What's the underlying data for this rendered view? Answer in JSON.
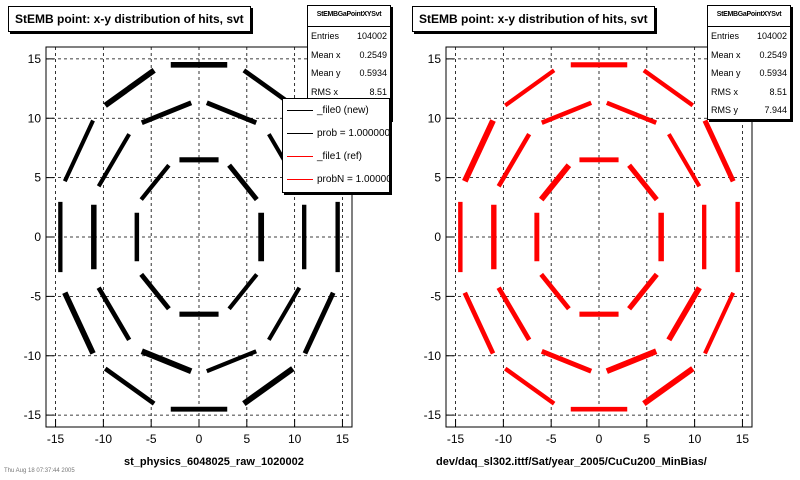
{
  "panels": [
    {
      "title": "StEMB point: x-y distribution of hits, svt",
      "stats": {
        "name": "StEMBGaPointXYSvt",
        "rows": [
          {
            "label": "Entries",
            "value": "104002"
          },
          {
            "label": "Mean x",
            "value": "0.2549"
          },
          {
            "label": "Mean y",
            "value": "0.5934"
          },
          {
            "label": "RMS x",
            "value": "8.51"
          }
        ]
      },
      "legend": [
        {
          "label": "_file0 (new)",
          "color": "#000000"
        },
        {
          "label": "prob = 1.000000",
          "color": "#000000"
        },
        {
          "label": "_file1 (ref)",
          "color": "#ff0000"
        },
        {
          "label": "probN = 1.000000",
          "color": "#ff0000"
        }
      ],
      "file_label": "st_physics_6048025_raw_1020002",
      "marker_color": "#000000"
    },
    {
      "title": "StEMB point: x-y distribution of hits, svt",
      "stats": {
        "name": "StEMBGaPointXYSvt",
        "rows": [
          {
            "label": "Entries",
            "value": "104002"
          },
          {
            "label": "Mean x",
            "value": "0.2549"
          },
          {
            "label": "Mean y",
            "value": "0.5934"
          },
          {
            "label": "RMS x",
            "value": "8.51"
          },
          {
            "label": "RMS y",
            "value": "7.944"
          }
        ]
      },
      "file_label": "dev/daq_sl302.ittf/Sat/year_2005/CuCu200_MinBias/",
      "marker_color": "#ff0000"
    }
  ],
  "footer_timestamp": "Thu Aug 18 07:37:44 2005",
  "chart_data": [
    {
      "type": "scatter",
      "title": "StEMB point: x-y distribution of hits, svt",
      "xlim": [
        -16,
        16
      ],
      "ylim": [
        -16,
        16
      ],
      "xticks": [
        -15,
        -10,
        -5,
        0,
        5,
        10,
        15
      ],
      "yticks": [
        -15,
        -10,
        -5,
        0,
        5,
        10,
        15
      ],
      "grid": true,
      "series": [
        {
          "name": "_file0 (new)",
          "color": "#000000",
          "layers": [
            {
              "shape": "octagon",
              "sides": 8,
              "apothem": 6.5,
              "rotation_deg": 0
            },
            {
              "shape": "octagon",
              "sides": 10,
              "apothem": 11.0,
              "rotation_deg": 0
            },
            {
              "shape": "octagon",
              "sides": 12,
              "apothem": 14.5,
              "rotation_deg": 0
            }
          ]
        }
      ]
    },
    {
      "type": "scatter",
      "title": "StEMB point: x-y distribution of hits, svt",
      "xlim": [
        -16,
        16
      ],
      "ylim": [
        -16,
        16
      ],
      "xticks": [
        -15,
        -10,
        -5,
        0,
        5,
        10,
        15
      ],
      "yticks": [
        -15,
        -10,
        -5,
        0,
        5,
        10,
        15
      ],
      "grid": true,
      "series": [
        {
          "name": "_file1 (ref)",
          "color": "#ff0000",
          "layers": [
            {
              "shape": "octagon",
              "sides": 8,
              "apothem": 6.5,
              "rotation_deg": 0
            },
            {
              "shape": "octagon",
              "sides": 10,
              "apothem": 11.0,
              "rotation_deg": 0
            },
            {
              "shape": "octagon",
              "sides": 12,
              "apothem": 14.5,
              "rotation_deg": 0
            }
          ]
        }
      ]
    }
  ]
}
